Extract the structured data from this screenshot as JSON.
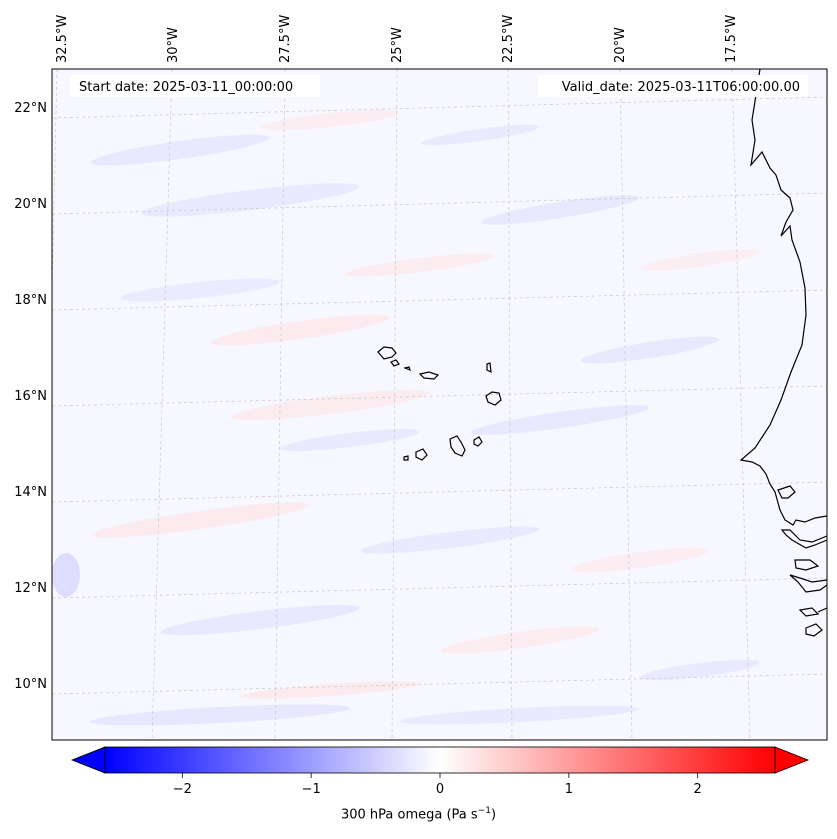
{
  "header": {
    "start_date": "Start date: 2025-03-11_00:00:00",
    "valid_date": "Valid_date: 2025-03-11T06:00:00.00"
  },
  "map": {
    "lon_labels": [
      "32.5°W",
      "30°W",
      "27.5°W",
      "25°W",
      "22.5°W",
      "20°W",
      "17.5°W"
    ],
    "lat_labels": [
      "22°N",
      "20°N",
      "18°N",
      "16°N",
      "14°N",
      "12°N",
      "10°N"
    ],
    "gridlines": true,
    "coastline_color": "#000000"
  },
  "colorbar": {
    "ticks": [
      "−2",
      "−1",
      "0",
      "1",
      "2"
    ],
    "tick_values": [
      -2,
      -1,
      0,
      1,
      2
    ],
    "range": [
      -2.6,
      2.6
    ],
    "cmap": "bwr",
    "extend": "both",
    "label_main": "300 hPa omega (Pa s",
    "label_exp": "−1",
    "label_tail": ")"
  }
}
